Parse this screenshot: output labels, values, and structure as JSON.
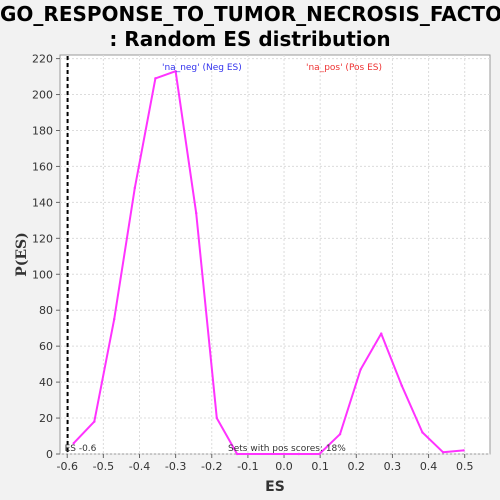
{
  "chart_data": {
    "type": "line",
    "title_lines": [
      "GO_RESPONSE_TO_TUMOR_NECROSIS_FACTOR",
      ": Random ES distribution"
    ],
    "xlabel": "ES",
    "ylabel": "P(ES)",
    "xlim": [
      -0.62,
      0.57
    ],
    "ylim": [
      0,
      222
    ],
    "xticks": [
      -0.6,
      -0.5,
      -0.4,
      -0.3,
      -0.2,
      -0.1,
      0.0,
      0.1,
      0.2,
      0.3,
      0.4,
      0.5
    ],
    "xtick_labels": [
      "-0.6",
      "-0.5",
      "-0.4",
      "-0.3",
      "-0.2",
      "-0.1",
      "0.0",
      "0.1",
      "0.2",
      "0.3",
      "0.4",
      "0.5"
    ],
    "yticks": [
      0,
      20,
      40,
      60,
      80,
      100,
      120,
      140,
      160,
      180,
      200,
      220
    ],
    "ytick_labels": [
      "0",
      "20",
      "40",
      "60",
      "80",
      "100",
      "120",
      "140",
      "160",
      "180",
      "200",
      "220"
    ],
    "grid": true,
    "series": [
      {
        "name": "",
        "color": "#ff33ff",
        "points": [
          [
            -0.582,
            6
          ],
          [
            -0.525,
            18
          ],
          [
            -0.47,
            75
          ],
          [
            -0.413,
            148
          ],
          [
            -0.356,
            209
          ],
          [
            -0.3,
            213
          ],
          [
            -0.243,
            134
          ],
          [
            -0.186,
            20
          ],
          [
            -0.13,
            0
          ],
          [
            0.041,
            0
          ],
          [
            0.098,
            0
          ],
          [
            0.155,
            11
          ],
          [
            0.212,
            47
          ],
          [
            0.269,
            67
          ],
          [
            0.326,
            38
          ],
          [
            0.383,
            12
          ],
          [
            0.44,
            1
          ],
          [
            0.497,
            2
          ]
        ]
      }
    ],
    "legend": [
      {
        "label": "'na_neg' (Neg ES)",
        "color": "#3333ee",
        "position": "top-left"
      },
      {
        "label": "'na_pos' (Pos ES)",
        "color": "#ee3333",
        "position": "top-right"
      }
    ],
    "annotations": {
      "es_marker_label": "ES -0.6",
      "es_marker_value": -0.599,
      "pos_scores_text": "Sets with pos scores: 18%"
    },
    "colors": {
      "background": "#f2f2f2",
      "plot_background": "#ffffff",
      "grid": "#dcdcdc",
      "curve": "#ff33ff",
      "es_marker": "#000000"
    }
  }
}
